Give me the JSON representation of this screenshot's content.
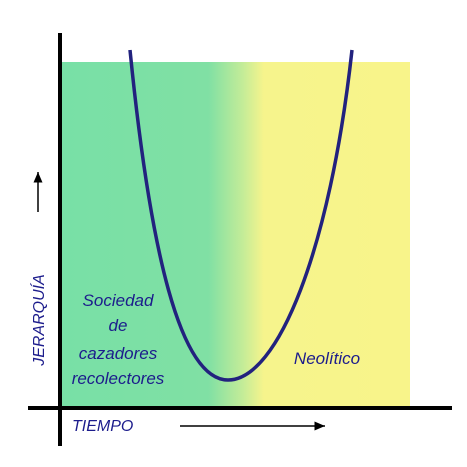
{
  "axes": {
    "y_label": "JERARQUÍA",
    "x_label": "TIEMPO"
  },
  "regions": {
    "left_label": [
      "Sociedad",
      "de",
      "cazadores",
      "recolectores"
    ],
    "right_label": "Neolítico"
  }
}
